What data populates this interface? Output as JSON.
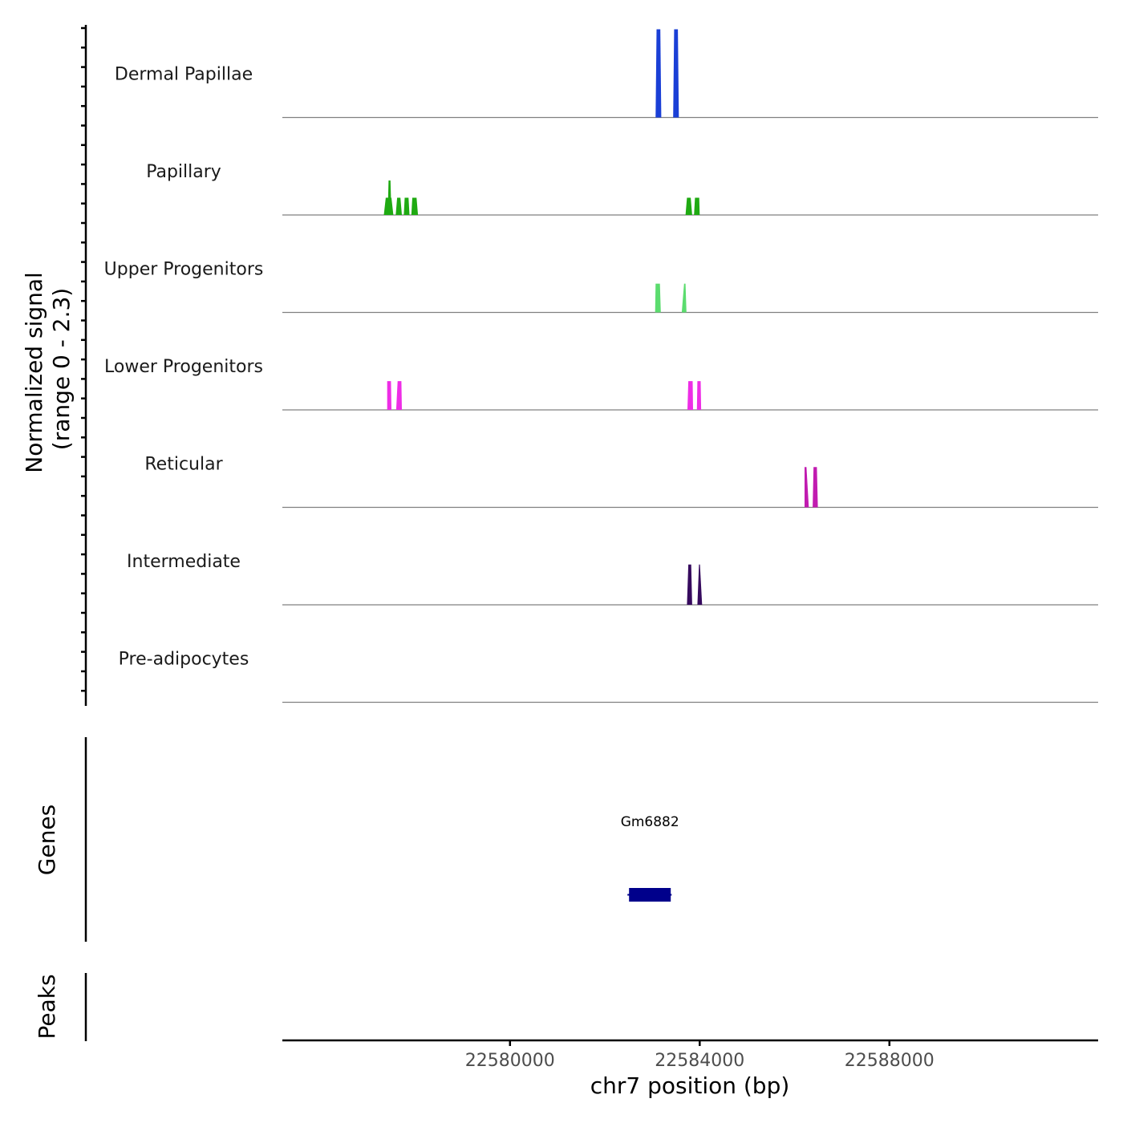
{
  "chart_data": {
    "type": "area",
    "title": "",
    "ylabel": "Normalized signal\n(range 0 - 2.3)",
    "ylabel_line1": "Normalized signal",
    "ylabel_line2": "(range 0 - 2.3)",
    "xlabel": "chr7 position (bp)",
    "chromosome": "chr7",
    "xlim": [
      22575200,
      22592400
    ],
    "ylim": [
      0,
      2.3
    ],
    "x_ticks": [
      22580000,
      22584000,
      22588000
    ],
    "x_tick_labels": [
      "22580000",
      "22584000",
      "22588000"
    ],
    "series": [
      {
        "name": "Dermal Papillae",
        "color": "#1a3fd6",
        "peaks": [
          {
            "x0": 22583070,
            "x1": 22583190,
            "top_x0": 22583090,
            "top_x1": 22583170,
            "value": 2.3
          },
          {
            "x0": 22583440,
            "x1": 22583560,
            "top_x0": 22583460,
            "top_x1": 22583540,
            "value": 2.3
          }
        ]
      },
      {
        "name": "Papillary",
        "color": "#1faa12",
        "peaks": [
          {
            "x0": 22577340,
            "x1": 22577540,
            "top_x0": 22577380,
            "top_x1": 22577500,
            "value": 0.45
          },
          {
            "x0": 22577420,
            "x1": 22577500,
            "top_x0": 22577440,
            "top_x1": 22577480,
            "value": 0.9
          },
          {
            "x0": 22577590,
            "x1": 22577720,
            "top_x0": 22577620,
            "top_x1": 22577690,
            "value": 0.45
          },
          {
            "x0": 22577760,
            "x1": 22577880,
            "top_x0": 22577780,
            "top_x1": 22577860,
            "value": 0.45
          },
          {
            "x0": 22577920,
            "x1": 22578060,
            "top_x0": 22577940,
            "top_x1": 22578030,
            "value": 0.45
          },
          {
            "x0": 22583700,
            "x1": 22583840,
            "top_x0": 22583730,
            "top_x1": 22583810,
            "value": 0.45
          },
          {
            "x0": 22583880,
            "x1": 22584000,
            "top_x0": 22583900,
            "top_x1": 22583990,
            "value": 0.45
          }
        ]
      },
      {
        "name": "Upper Progenitors",
        "color": "#5bdc6e",
        "peaks": [
          {
            "x0": 22583060,
            "x1": 22583180,
            "top_x0": 22583070,
            "top_x1": 22583160,
            "value": 0.75
          },
          {
            "x0": 22583620,
            "x1": 22583720,
            "top_x0": 22583670,
            "top_x1": 22583700,
            "value": 0.75
          }
        ]
      },
      {
        "name": "Lower Progenitors",
        "color": "#ee2de6",
        "peaks": [
          {
            "x0": 22577410,
            "x1": 22577500,
            "top_x0": 22577410,
            "top_x1": 22577490,
            "value": 0.75
          },
          {
            "x0": 22577600,
            "x1": 22577720,
            "top_x0": 22577630,
            "top_x1": 22577710,
            "value": 0.75
          },
          {
            "x0": 22583740,
            "x1": 22583860,
            "top_x0": 22583760,
            "top_x1": 22583850,
            "value": 0.75
          },
          {
            "x0": 22583940,
            "x1": 22584030,
            "top_x0": 22583950,
            "top_x1": 22584020,
            "value": 0.75
          }
        ]
      },
      {
        "name": "Reticular",
        "color": "#c11bb0",
        "peaks": [
          {
            "x0": 22586210,
            "x1": 22586300,
            "top_x0": 22586210,
            "top_x1": 22586250,
            "value": 1.05
          },
          {
            "x0": 22586380,
            "x1": 22586490,
            "top_x0": 22586400,
            "top_x1": 22586470,
            "value": 1.05
          }
        ]
      },
      {
        "name": "Intermediate",
        "color": "#360a5e",
        "peaks": [
          {
            "x0": 22583730,
            "x1": 22583840,
            "top_x0": 22583760,
            "top_x1": 22583820,
            "value": 1.05
          },
          {
            "x0": 22583950,
            "x1": 22584050,
            "top_x0": 22583985,
            "top_x1": 22584005,
            "value": 1.05
          }
        ]
      },
      {
        "name": "Pre-adipocytes",
        "color": "#888888",
        "peaks": []
      }
    ],
    "genes_track": {
      "label": "Genes",
      "genes": [
        {
          "name": "Gm6882",
          "start": 22582510,
          "end": 22583390,
          "color": "#00008b"
        }
      ]
    },
    "peaks_track": {
      "label": "Peaks",
      "peaks": []
    }
  }
}
